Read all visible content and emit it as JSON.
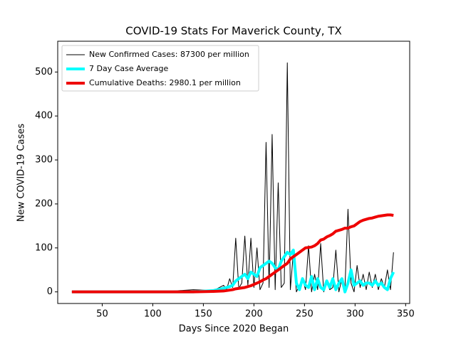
{
  "chart_data": {
    "type": "line",
    "title": "COVID-19 Stats For Maverick County, TX",
    "x_label": "Days Since 2020 Began",
    "y_label": "New COVID-19 Cases",
    "x": [
      20,
      40,
      60,
      80,
      100,
      120,
      140,
      160,
      170,
      173,
      176,
      179,
      182,
      185,
      188,
      191,
      194,
      197,
      200,
      203,
      206,
      209,
      212,
      215,
      218,
      221,
      224,
      227,
      230,
      233,
      236,
      239,
      242,
      245,
      248,
      251,
      254,
      257,
      260,
      263,
      266,
      269,
      272,
      275,
      278,
      281,
      284,
      287,
      290,
      293,
      296,
      299,
      302,
      305,
      308,
      311,
      314,
      317,
      320,
      323,
      326,
      329,
      332,
      335,
      338
    ],
    "series": [
      {
        "name": "New Confirmed Cases: 87300 per million",
        "color": "#000000",
        "linewidth": 1,
        "values": [
          0,
          0,
          0,
          0,
          0,
          2,
          5,
          3,
          15,
          5,
          30,
          10,
          122,
          8,
          20,
          127,
          15,
          122,
          10,
          100,
          5,
          20,
          340,
          10,
          358,
          5,
          248,
          10,
          20,
          521,
          5,
          90,
          0,
          15,
          30,
          5,
          105,
          0,
          40,
          5,
          110,
          0,
          20,
          5,
          10,
          95,
          0,
          30,
          10,
          188,
          20,
          0,
          60,
          10,
          40,
          5,
          45,
          10,
          40,
          5,
          30,
          10,
          50,
          5,
          90
        ]
      },
      {
        "name": "7 Day Case Average",
        "color": "#00ffff",
        "linewidth": 4,
        "values": [
          0,
          0,
          0,
          0,
          0,
          0,
          0,
          3,
          8,
          10,
          12,
          15,
          25,
          30,
          35,
          40,
          30,
          45,
          40,
          35,
          55,
          60,
          65,
          70,
          65,
          55,
          50,
          70,
          80,
          90,
          85,
          95,
          20,
          5,
          30,
          15,
          10,
          35,
          5,
          30,
          10,
          5,
          25,
          10,
          30,
          5,
          20,
          30,
          0,
          20,
          50,
          15,
          20,
          25,
          15,
          20,
          20,
          15,
          25,
          15,
          20,
          10,
          5,
          30,
          45
        ]
      },
      {
        "name": "Cumulative Deaths: 2980.1 per million",
        "color": "#ee0000",
        "linewidth": 4,
        "values": [
          0,
          0,
          0,
          0,
          0,
          0,
          0,
          1,
          2,
          3,
          4,
          5,
          7,
          8,
          9,
          10,
          12,
          14,
          17,
          20,
          23,
          27,
          30,
          35,
          40,
          45,
          50,
          55,
          60,
          65,
          75,
          80,
          85,
          90,
          95,
          100,
          101,
          102,
          105,
          110,
          118,
          120,
          125,
          128,
          132,
          138,
          140,
          142,
          145,
          145,
          148,
          150,
          155,
          160,
          163,
          165,
          167,
          168,
          170,
          172,
          173,
          174,
          175,
          175,
          174
        ]
      }
    ],
    "xlim": [
      6,
      354
    ],
    "ylim": [
      -26.4,
      570
    ],
    "xticks": [
      50,
      100,
      150,
      200,
      250,
      300,
      350
    ],
    "yticks": [
      0,
      100,
      200,
      300,
      400,
      500
    ],
    "legend": "upper left"
  }
}
